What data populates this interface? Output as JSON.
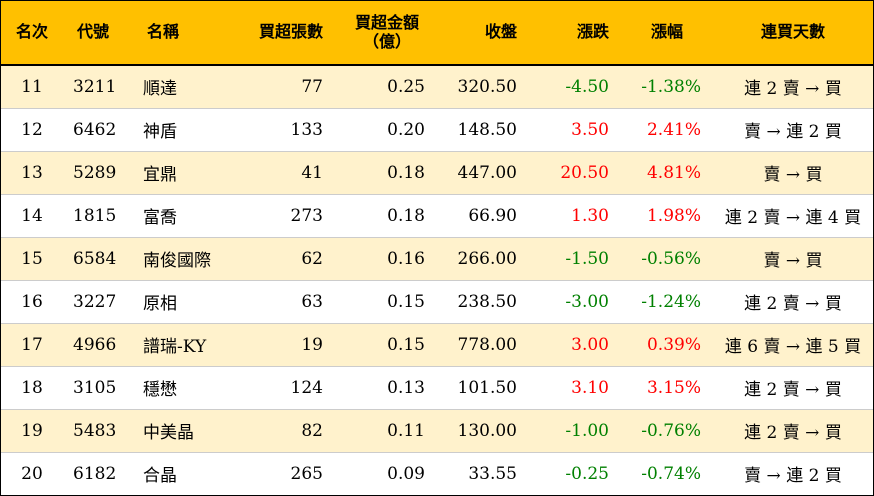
{
  "colors": {
    "header_bg": "#ffc000",
    "alt_row_bg": "#fff2cc",
    "up": "#ff0000",
    "down": "#008000"
  },
  "header": {
    "rank": "名次",
    "code": "代號",
    "name": "名稱",
    "net_buy_lots": "買超張數",
    "net_buy_amount_line1": "買超金額",
    "net_buy_amount_line2": "（億）",
    "close": "收盤",
    "change": "漲跌",
    "change_pct": "漲幅",
    "consecutive_days": "連買天數"
  },
  "rows": [
    {
      "rank": "11",
      "code": "3211",
      "name": "順達",
      "net_buy_lots": "77",
      "net_buy_amount": "0.25",
      "close": "320.50",
      "change": "-4.50",
      "change_pct": "-1.38%",
      "direction": "down",
      "consecutive_days": "連 2 賣 → 買"
    },
    {
      "rank": "12",
      "code": "6462",
      "name": "神盾",
      "net_buy_lots": "133",
      "net_buy_amount": "0.20",
      "close": "148.50",
      "change": "3.50",
      "change_pct": "2.41%",
      "direction": "up",
      "consecutive_days": "賣 → 連 2 買"
    },
    {
      "rank": "13",
      "code": "5289",
      "name": "宜鼎",
      "net_buy_lots": "41",
      "net_buy_amount": "0.18",
      "close": "447.00",
      "change": "20.50",
      "change_pct": "4.81%",
      "direction": "up",
      "consecutive_days": "賣 → 買"
    },
    {
      "rank": "14",
      "code": "1815",
      "name": "富喬",
      "net_buy_lots": "273",
      "net_buy_amount": "0.18",
      "close": "66.90",
      "change": "1.30",
      "change_pct": "1.98%",
      "direction": "up",
      "consecutive_days": "連 2 賣 → 連 4 買"
    },
    {
      "rank": "15",
      "code": "6584",
      "name": "南俊國際",
      "net_buy_lots": "62",
      "net_buy_amount": "0.16",
      "close": "266.00",
      "change": "-1.50",
      "change_pct": "-0.56%",
      "direction": "down",
      "consecutive_days": "賣 → 買"
    },
    {
      "rank": "16",
      "code": "3227",
      "name": "原相",
      "net_buy_lots": "63",
      "net_buy_amount": "0.15",
      "close": "238.50",
      "change": "-3.00",
      "change_pct": "-1.24%",
      "direction": "down",
      "consecutive_days": "連 2 賣 → 買"
    },
    {
      "rank": "17",
      "code": "4966",
      "name": "譜瑞-KY",
      "net_buy_lots": "19",
      "net_buy_amount": "0.15",
      "close": "778.00",
      "change": "3.00",
      "change_pct": "0.39%",
      "direction": "up",
      "consecutive_days": "連 6 賣 → 連 5 買"
    },
    {
      "rank": "18",
      "code": "3105",
      "name": "穩懋",
      "net_buy_lots": "124",
      "net_buy_amount": "0.13",
      "close": "101.50",
      "change": "3.10",
      "change_pct": "3.15%",
      "direction": "up",
      "consecutive_days": "連 2 賣 → 買"
    },
    {
      "rank": "19",
      "code": "5483",
      "name": "中美晶",
      "net_buy_lots": "82",
      "net_buy_amount": "0.11",
      "close": "130.00",
      "change": "-1.00",
      "change_pct": "-0.76%",
      "direction": "down",
      "consecutive_days": "連 2 賣 → 買"
    },
    {
      "rank": "20",
      "code": "6182",
      "name": "合晶",
      "net_buy_lots": "265",
      "net_buy_amount": "0.09",
      "close": "33.55",
      "change": "-0.25",
      "change_pct": "-0.74%",
      "direction": "down",
      "consecutive_days": "賣 → 連 2 買"
    }
  ]
}
